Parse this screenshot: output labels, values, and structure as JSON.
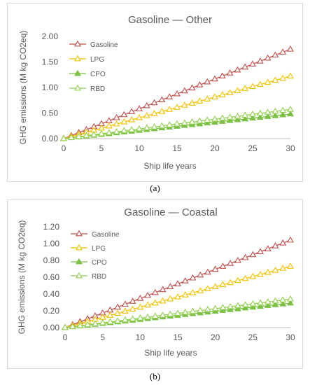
{
  "captions": {
    "a": "(a)",
    "b": "(b)"
  },
  "colors": {
    "gasoline": "#c0504d",
    "lpg": "#f2c200",
    "cpo": "#7ac143",
    "rbd": "#92d050",
    "axis_text": "#595959"
  },
  "chart_data": [
    {
      "type": "line",
      "title": "Gasoline — Other",
      "xlabel": "Ship life years",
      "ylabel": "GHG emissions (M kg CO2eq)",
      "xlim": [
        0,
        30
      ],
      "ylim": [
        0,
        2.0
      ],
      "xticks": [
        "0",
        "5",
        "10",
        "15",
        "20",
        "25",
        "30"
      ],
      "yticks": [
        "0.00",
        "0.50",
        "1.00",
        "1.50",
        "2.00"
      ],
      "legend_position": "top-left",
      "grid": false,
      "series": [
        {
          "name": "Gasoline",
          "slope": 0.0583,
          "end_value": 1.75
        },
        {
          "name": "LPG",
          "slope": 0.0407,
          "end_value": 1.22
        },
        {
          "name": "CPO",
          "slope": 0.016,
          "end_value": 0.48
        },
        {
          "name": "RBD",
          "slope": 0.019,
          "end_value": 0.57
        }
      ]
    },
    {
      "type": "line",
      "title": "Gasoline — Coastal",
      "xlabel": "Ship life years",
      "ylabel": "GHG emissions (M kg CO2eq)",
      "xlim": [
        0,
        30
      ],
      "ylim": [
        0,
        1.2
      ],
      "xticks": [
        "0",
        "5",
        "10",
        "15",
        "20",
        "25",
        "30"
      ],
      "yticks": [
        "0.00",
        "0.20",
        "0.40",
        "0.60",
        "0.80",
        "1.00",
        "1.20"
      ],
      "legend_position": "top-left",
      "grid": false,
      "series": [
        {
          "name": "Gasoline",
          "slope": 0.0347,
          "end_value": 1.04
        },
        {
          "name": "LPG",
          "slope": 0.0243,
          "end_value": 0.73
        },
        {
          "name": "CPO",
          "slope": 0.0097,
          "end_value": 0.29
        },
        {
          "name": "RBD",
          "slope": 0.0113,
          "end_value": 0.34
        }
      ]
    }
  ]
}
